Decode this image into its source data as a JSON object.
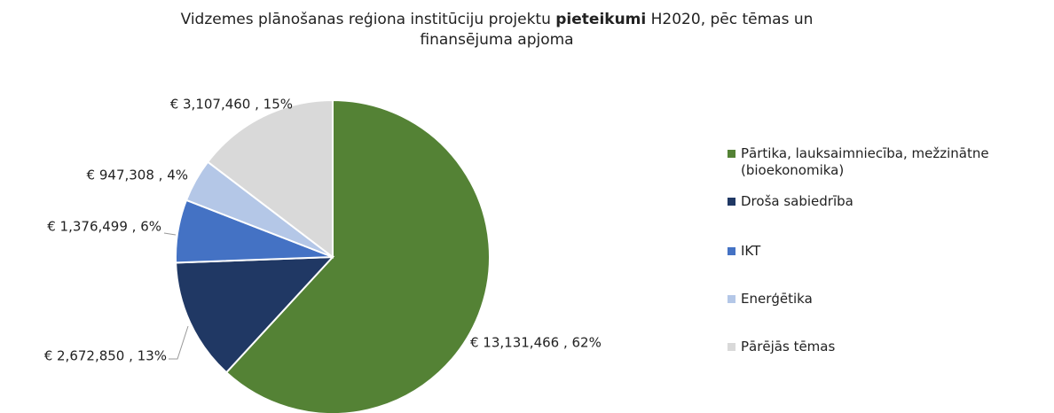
{
  "chart_data": {
    "type": "pie",
    "title": {
      "line1": [
        "Vidzemes plānošanas reģiona institūciju projektu",
        "pieteikumi",
        "H2020, pēc tēmas un"
      ],
      "line2": "finansējuma apjoma"
    },
    "categories": [
      "Pārtika, lauksaimniecība, mežzinātne (bioekonomika)",
      "Droša sabiedrība",
      "IKT",
      "Enerģētika",
      "Pārējās tēmas"
    ],
    "values": [
      13131466,
      2672850,
      1376499,
      947308,
      3107460
    ],
    "value_labels": [
      "€ 13,131,466 , 62%",
      "€ 2,672,850 , 13%",
      "€ 1,376,499 , 6%",
      "€ 947,308 , 4%",
      "€ 3,107,460 , 15%"
    ],
    "colors": [
      "#548235",
      "#203864",
      "#4472c4",
      "#b4c7e7",
      "#d9d9d9"
    ],
    "legend": "right"
  }
}
